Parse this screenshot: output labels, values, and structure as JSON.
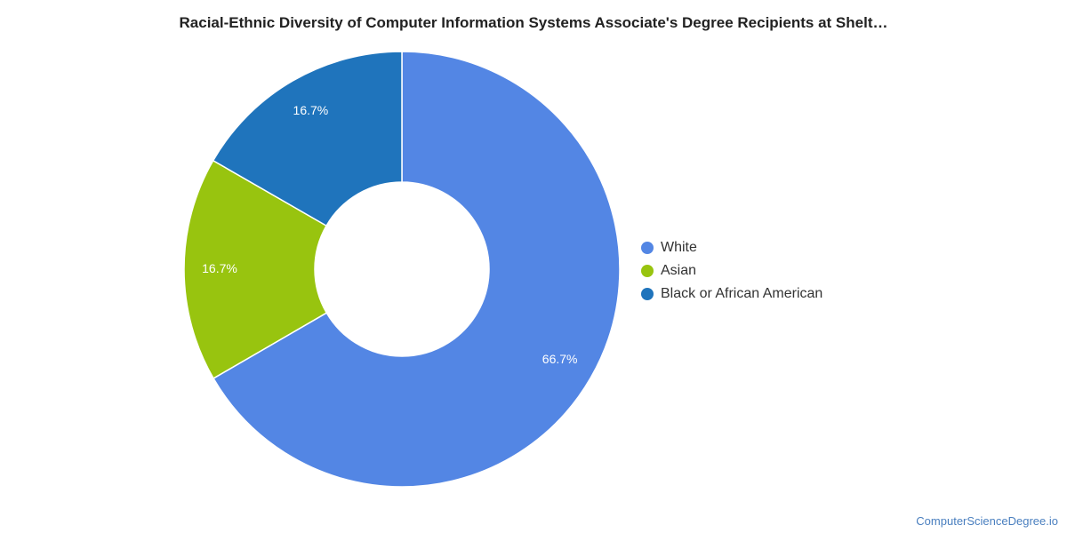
{
  "chart_data": {
    "type": "pie",
    "title": "Racial-Ethnic Diversity of Computer Information Systems Associate's Degree Recipients at Shelt…",
    "donut": true,
    "legend_position": "right",
    "slices": [
      {
        "label": "White",
        "value": 66.7,
        "value_label": "66.7%",
        "color": "#5386e4"
      },
      {
        "label": "Asian",
        "value": 16.7,
        "value_label": "16.7%",
        "color": "#98c40f"
      },
      {
        "label": "Black or African American",
        "value": 16.7,
        "value_label": "16.7%",
        "color": "#1f74bc"
      }
    ]
  },
  "footer": {
    "text": "ComputerScienceDegree.io"
  }
}
